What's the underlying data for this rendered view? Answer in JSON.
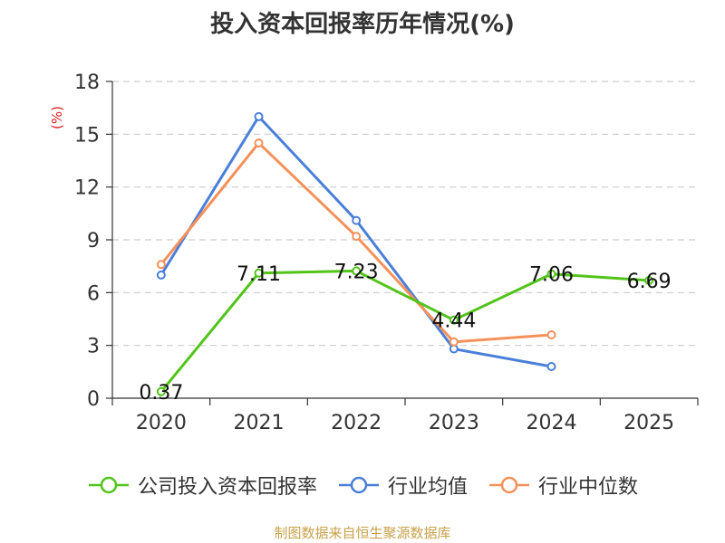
{
  "chart_data": {
    "type": "line",
    "title": "投入资本回报率历年情况(%)",
    "ylabel": "(%)",
    "xlabel": "",
    "ylim": [
      0,
      18
    ],
    "yticks": [
      "0",
      "3",
      "6",
      "9",
      "12",
      "15",
      "18"
    ],
    "categories": [
      "2020",
      "2021",
      "2022",
      "2023",
      "2024",
      "2025"
    ],
    "series": [
      {
        "name": "公司投入资本回报率",
        "color": "#52c41a",
        "values": [
          0.37,
          7.11,
          7.23,
          4.44,
          7.06,
          6.69
        ],
        "labels": [
          "0.37",
          "7.11",
          "7.23",
          "4.44",
          "7.06",
          "6.69"
        ]
      },
      {
        "name": "行业均值",
        "color": "#4a7fd9",
        "values": [
          7.0,
          16.0,
          10.1,
          2.8,
          1.8,
          null
        ]
      },
      {
        "name": "行业中位数",
        "color": "#f5915a",
        "values": [
          7.6,
          14.5,
          9.2,
          3.2,
          3.6,
          null
        ]
      }
    ],
    "grid": true
  },
  "source_note": "制图数据来自恒生聚源数据库"
}
